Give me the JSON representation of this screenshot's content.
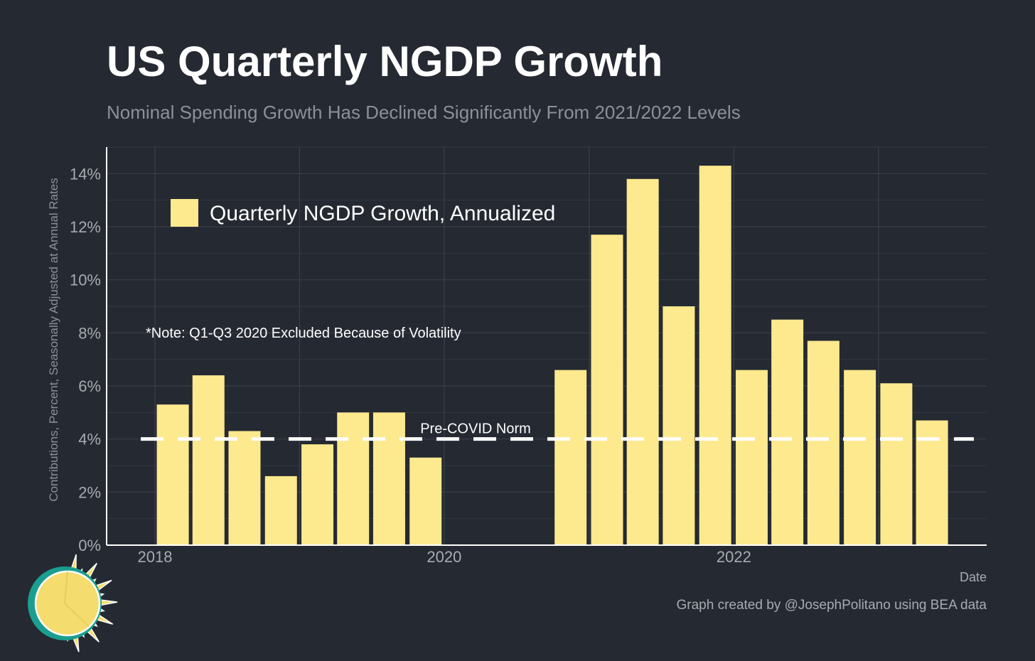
{
  "title": "US Quarterly NGDP Growth",
  "subtitle": "Nominal Spending Growth Has Declined Significantly From 2021/2022 Levels",
  "caption": "Graph created by @JosephPolitano using BEA data",
  "colors": {
    "background": "#252932",
    "bar": "#fde98e",
    "grid": "#3a3f49",
    "axis": "#ffffff",
    "tick_text": "#a8abb0",
    "reference_line": "#ffffff",
    "logo_sun": "#f5dc6e",
    "logo_ring": "#1a9e8f"
  },
  "logo": {
    "icon": "sun-icon"
  },
  "chart_data": {
    "type": "bar",
    "title": "US Quarterly NGDP Growth",
    "subtitle": "Nominal Spending Growth Has Declined Significantly From 2021/2022 Levels",
    "xlabel": "Date",
    "ylabel": "Contributions, Percent, Seasonally Adjusted at Annual Rates",
    "categories": [
      "2018-01-01",
      "2018-04-01",
      "2018-07-01",
      "2018-10-01",
      "2019-01-01",
      "2019-04-01",
      "2019-07-01",
      "2019-10-01",
      "2020-10-01",
      "2021-01-01",
      "2021-04-01",
      "2021-07-01",
      "2021-10-01",
      "2022-01-01",
      "2022-04-01",
      "2022-07-01",
      "2022-10-01",
      "2023-01-01",
      "2023-04-01"
    ],
    "series": [
      {
        "name": "Quarterly NGDP Growth, Annualized",
        "values": [
          5.3,
          6.4,
          4.3,
          2.6,
          3.8,
          5.0,
          5.0,
          3.3,
          6.6,
          11.7,
          13.8,
          9.0,
          14.3,
          6.6,
          8.5,
          7.7,
          6.6,
          6.1,
          4.7
        ]
      }
    ],
    "x_ticks": [
      "2018",
      "2020",
      "2022"
    ],
    "x_range": [
      "2017-09-01",
      "2023-10-01"
    ],
    "ylim": [
      0,
      15
    ],
    "y_ticks": [
      "0%",
      "2%",
      "4%",
      "6%",
      "8%",
      "10%",
      "12%",
      "14%"
    ],
    "y_tick_values": [
      0,
      2,
      4,
      6,
      8,
      10,
      12,
      14
    ],
    "grid": true,
    "legend": {
      "placement": "top-left",
      "label": "Quarterly NGDP Growth, Annualized"
    },
    "reference_line": {
      "value": 4,
      "label": "Pre-COVID Norm",
      "style": "dashed"
    },
    "annotations": [
      {
        "text": "*Note: Q1-Q3 2020 Excluded Because of Volatility",
        "x": "2017-12-01",
        "y": 8
      }
    ]
  }
}
